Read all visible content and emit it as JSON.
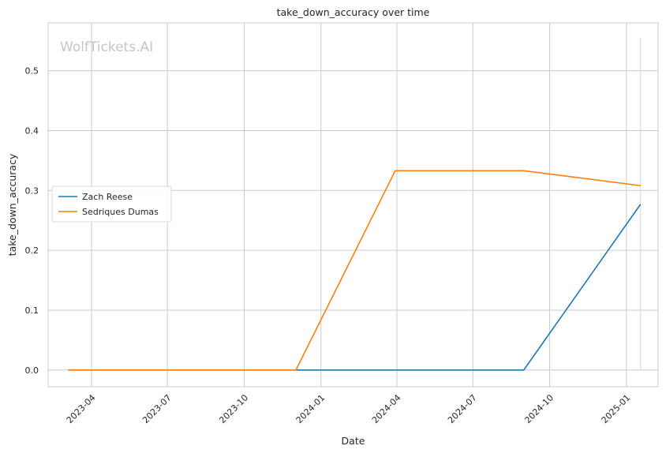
{
  "chart_data": {
    "type": "line",
    "title": "take_down_accuracy over time",
    "xlabel": "Date",
    "ylabel": "take_down_accuracy",
    "watermark": "WolfTickets.AI",
    "x_ticks": [
      "2023-04",
      "2023-07",
      "2023-10",
      "2024-01",
      "2024-04",
      "2024-07",
      "2024-10",
      "2025-01"
    ],
    "y_ticks": [
      "0.0",
      "0.1",
      "0.2",
      "0.3",
      "0.4",
      "0.5"
    ],
    "xlim": [
      "2023-02-08",
      "2025-02-08"
    ],
    "ylim": [
      -0.028,
      0.58
    ],
    "grid": true,
    "legend_position": "center-left",
    "series": [
      {
        "name": "Zach Reese",
        "color": "#1f77b4",
        "points": [
          {
            "x": "2023-03-04",
            "y": 0.0
          },
          {
            "x": "2023-12-02",
            "y": 0.0
          },
          {
            "x": "2024-08-31",
            "y": 0.0
          },
          {
            "x": "2025-01-18",
            "y": 0.277
          }
        ]
      },
      {
        "name": "Sedriques Dumas",
        "color": "#ff7f0e",
        "points": [
          {
            "x": "2023-03-04",
            "y": 0.0
          },
          {
            "x": "2023-12-02",
            "y": 0.0
          },
          {
            "x": "2024-03-30",
            "y": 0.333
          },
          {
            "x": "2024-08-31",
            "y": 0.333
          },
          {
            "x": "2025-01-18",
            "y": 0.308
          }
        ]
      }
    ],
    "marker_line": {
      "x": "2025-01-18",
      "y_top": 0.555,
      "color": "#c9dfd6"
    }
  }
}
